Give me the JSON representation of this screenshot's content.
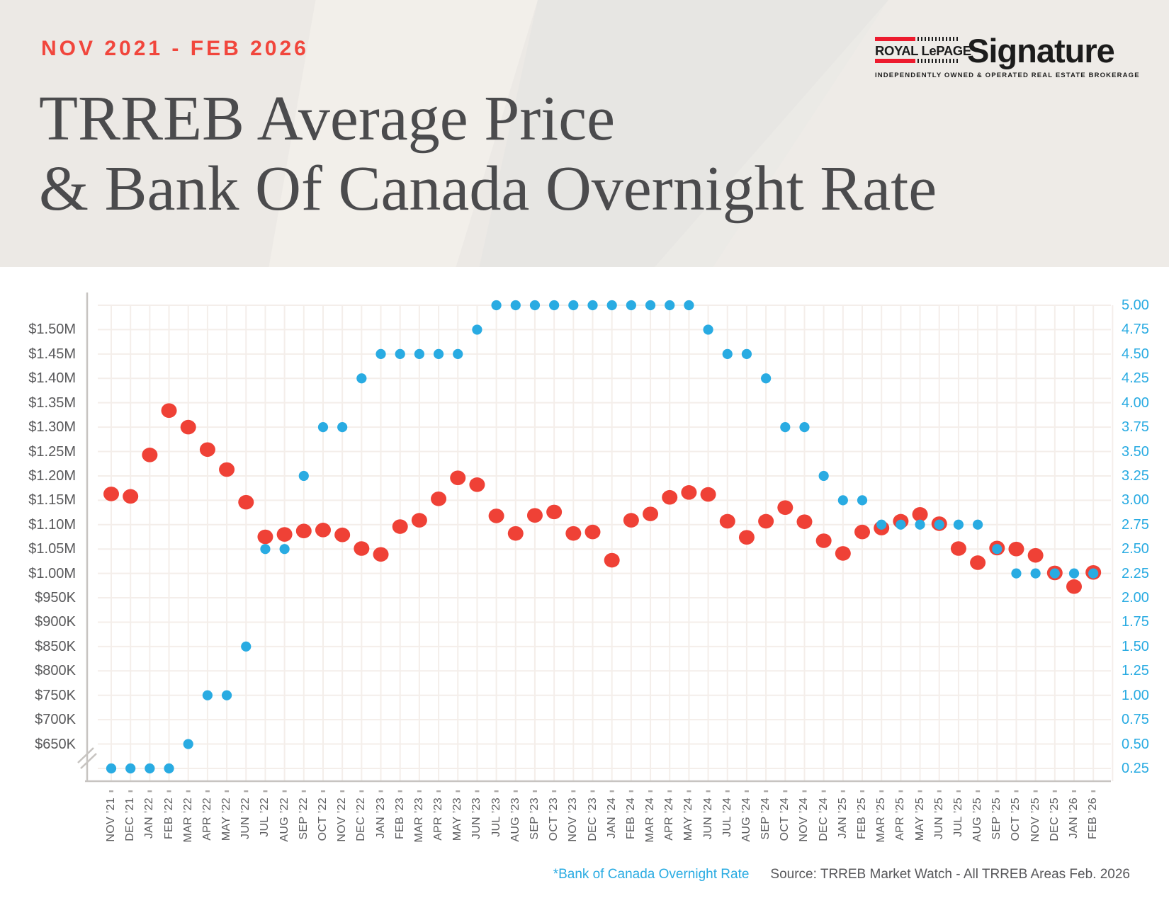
{
  "header": {
    "period_label": "NOV 2021 - FEB 2026",
    "title_line1": "TRREB Average Price",
    "title_line2": "& Bank Of Canada Overnight Rate",
    "logo": {
      "brand_name": "ROYAL LePAGE",
      "brand_reg": "®",
      "brand_suffix": "Signature",
      "tagline": "INDEPENDENTLY OWNED & OPERATED REAL ESTATE BROKERAGE"
    }
  },
  "footer": {
    "legend_note": "*Bank of Canada Overnight Rate",
    "source": "Source: TRREB Market Watch - All TRREB Areas Feb. 2026"
  },
  "colors": {
    "price_red": "#EF4136",
    "rate_blue": "#29ABE2",
    "accent_red": "#F1463C",
    "logo_red": "#ED1B2E",
    "grid": "#F4EEEA",
    "axis_line": "#C7C4C1",
    "tick": "#ABA8A6",
    "label_gray": "#58585A",
    "title_gray": "#4B4B4D",
    "header_bg": "#ECE9E5"
  },
  "chart_data": {
    "type": "scatter",
    "title": "TRREB Average Price & Bank Of Canada Overnight Rate",
    "x_categories": [
      "NOV ’21",
      "DEC ’21",
      "JAN ’22",
      "FEB ’22",
      "MAR ’22",
      "APR ’22",
      "MAY ’22",
      "JUN ’22",
      "JUL ’22",
      "AUG ’22",
      "SEP ’22",
      "OCT ’22",
      "NOV ’22",
      "DEC ’22",
      "JAN ’23",
      "FEB ’23",
      "MAR ’23",
      "APR ’23",
      "MAY ’23",
      "JUN ’23",
      "JUL ’23",
      "AUG ’23",
      "SEP ’23",
      "OCT ’23",
      "NOV ’23",
      "DEC ’23",
      "JAN ’24",
      "FEB ’24",
      "MAR ’24",
      "APR ’24",
      "MAY ’24",
      "JUN ’24",
      "JUL ’24",
      "AUG ’24",
      "SEP ’24",
      "OCT ’24",
      "NOV ’24",
      "DEC ’24",
      "JAN ’25",
      "FEB ’25",
      "MAR ’25",
      "APR ’25",
      "MAY ’25",
      "JUN ’25",
      "JUL ’25",
      "AUG ’25",
      "SEP ’25",
      "OCT ’25",
      "NOV ’25",
      "DEC ’25",
      "JAN ’26",
      "FEB ’26"
    ],
    "series": [
      {
        "name": "TRREB Average Price",
        "axis": "left",
        "unit": "millions CAD",
        "color": "#EF4136",
        "values": [
          1.163,
          1.158,
          1.243,
          1.334,
          1.3,
          1.254,
          1.213,
          1.146,
          1.075,
          1.08,
          1.087,
          1.089,
          1.079,
          1.051,
          1.039,
          1.096,
          1.109,
          1.153,
          1.196,
          1.182,
          1.118,
          1.082,
          1.119,
          1.126,
          1.082,
          1.085,
          1.027,
          1.109,
          1.122,
          1.156,
          1.166,
          1.162,
          1.107,
          1.074,
          1.107,
          1.135,
          1.106,
          1.067,
          1.041,
          1.085,
          1.093,
          1.107,
          1.121,
          1.102,
          1.051,
          1.022,
          1.052,
          1.05,
          1.037,
          1.001,
          0.973,
          1.002
        ]
      },
      {
        "name": "Bank of Canada Overnight Rate",
        "axis": "right",
        "unit": "%",
        "color": "#29ABE2",
        "values": [
          0.25,
          0.25,
          0.25,
          0.25,
          0.5,
          1.0,
          1.0,
          1.5,
          2.5,
          2.5,
          3.25,
          3.75,
          3.75,
          4.25,
          4.5,
          4.5,
          4.5,
          4.5,
          4.5,
          4.75,
          5.0,
          5.0,
          5.0,
          5.0,
          5.0,
          5.0,
          5.0,
          5.0,
          5.0,
          5.0,
          5.0,
          4.75,
          4.5,
          4.5,
          4.25,
          3.75,
          3.75,
          3.25,
          3.0,
          3.0,
          2.75,
          2.75,
          2.75,
          2.75,
          2.75,
          2.75,
          2.5,
          2.25,
          2.25,
          2.25,
          2.25,
          2.25
        ]
      }
    ],
    "left_axis": {
      "tick_labels": [
        "$1.50M",
        "$1.45M",
        "$1.40M",
        "$1.35M",
        "$1.30M",
        "$1.25M",
        "$1.20M",
        "$1.15M",
        "$1.10M",
        "$1.05M",
        "$1.00M",
        "$950K",
        "$900K",
        "$850K",
        "$800K",
        "$750K",
        "$700K",
        "$650K"
      ],
      "max": 1.5,
      "step": 0.05,
      "axis_break_below": 0.65
    },
    "right_axis": {
      "tick_labels": [
        "5.00",
        "4.75",
        "4.50",
        "4.25",
        "4.00",
        "3.75",
        "3.50",
        "3.25",
        "3.00",
        "2.75",
        "2.50",
        "2.25",
        "2.00",
        "1.75",
        "1.50",
        "1.25",
        "1.00",
        "0.75",
        "0.50",
        "0.25"
      ],
      "max": 5.0,
      "step": 0.25
    },
    "grid": true,
    "legend_position": "footnote"
  }
}
